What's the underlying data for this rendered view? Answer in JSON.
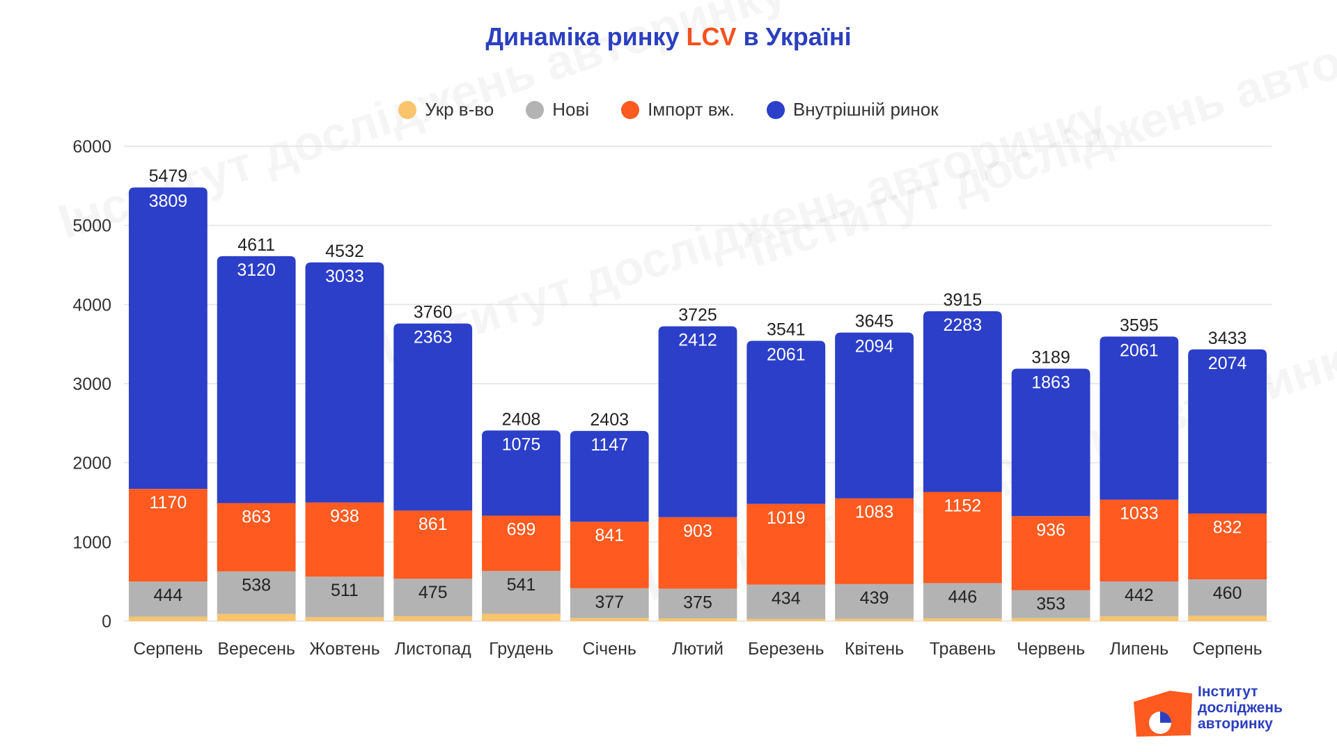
{
  "title": {
    "prefix": "Динаміка ринку ",
    "accent": "LCV",
    "suffix": " в Україні"
  },
  "colors": {
    "ukr": "#f9c46b",
    "new": "#b3b3b3",
    "import": "#ff5a1f",
    "domestic": "#2b3fc8",
    "title": "#2b3fbf",
    "accent": "#f4511e"
  },
  "logo": {
    "line1": "Інститут",
    "line2": "досліджень",
    "line3": "авторинку"
  },
  "watermark_text": "Інститут досліджень авторинку",
  "chart_data": {
    "type": "bar",
    "stacked": true,
    "categories": [
      "Серпень",
      "Вересень",
      "Жовтень",
      "Листопад",
      "Грудень",
      "Січень",
      "Лютий",
      "Березень",
      "Квітень",
      "Травень",
      "Червень",
      "Липень",
      "Серпень"
    ],
    "series": [
      {
        "name": "Укр в-во",
        "color": "#f9c46b",
        "values": [
          56,
          90,
          50,
          61,
          93,
          38,
          35,
          27,
          29,
          34,
          37,
          59,
          67
        ],
        "show_labels": false
      },
      {
        "name": "Нові",
        "color": "#b3b3b3",
        "values": [
          444,
          538,
          511,
          475,
          541,
          377,
          375,
          434,
          439,
          446,
          353,
          442,
          460
        ],
        "show_labels": true,
        "label_color": "#222222"
      },
      {
        "name": "Імпорт вж.",
        "color": "#ff5a1f",
        "values": [
          1170,
          863,
          938,
          861,
          699,
          841,
          903,
          1019,
          1083,
          1152,
          936,
          1033,
          832
        ],
        "show_labels": true,
        "label_color": "#ffffff"
      },
      {
        "name": "Внутрішній ринок",
        "color": "#2b3fc8",
        "values": [
          3809,
          3120,
          3033,
          2363,
          1075,
          1147,
          2412,
          2061,
          2094,
          2283,
          1863,
          2061,
          2074
        ],
        "show_labels": true,
        "label_color": "#ffffff"
      }
    ],
    "totals": [
      5479,
      4611,
      4532,
      3760,
      2408,
      2403,
      3725,
      3541,
      3645,
      3915,
      3189,
      3595,
      3433
    ],
    "ylim": [
      0,
      6000
    ],
    "yticks": [
      0,
      1000,
      2000,
      3000,
      4000,
      5000,
      6000
    ],
    "grid": true,
    "legend_position": "top"
  }
}
